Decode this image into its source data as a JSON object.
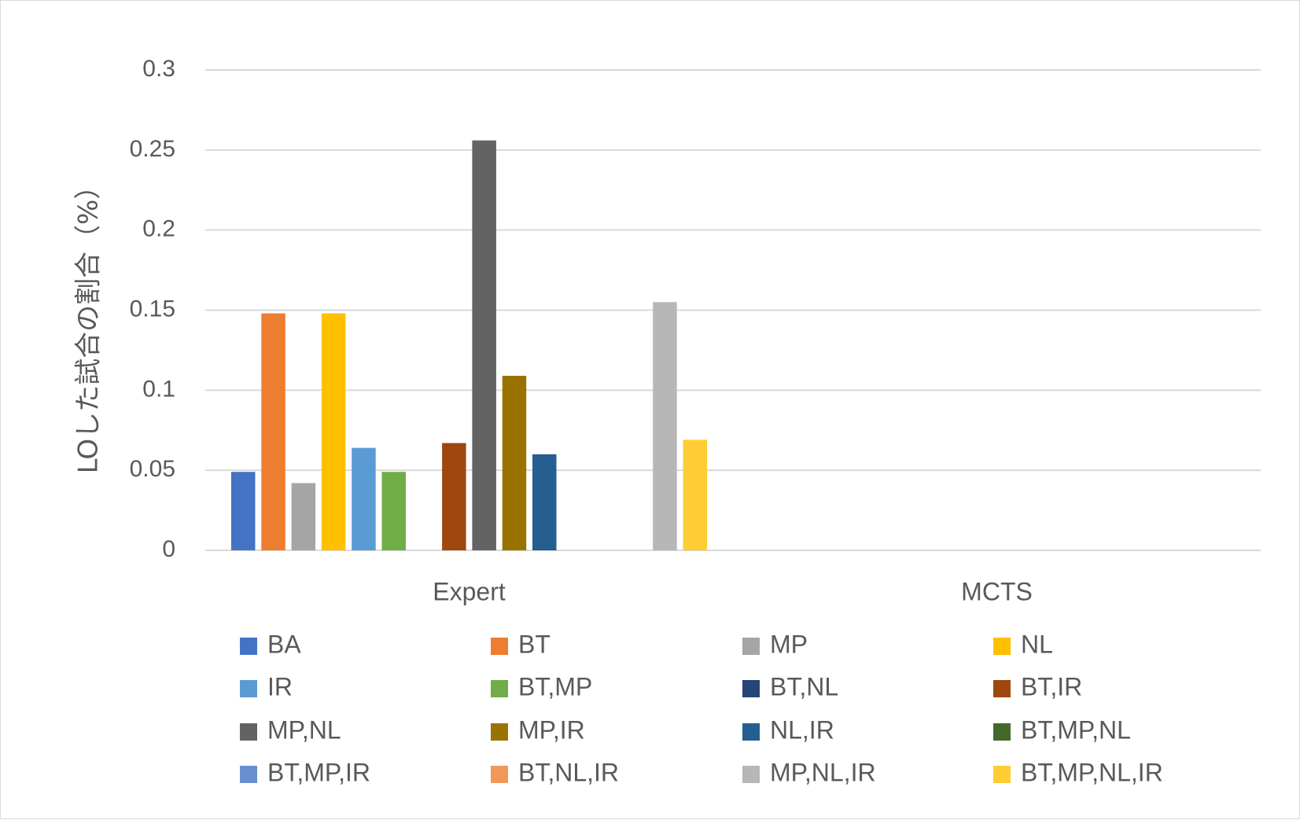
{
  "chart_data": {
    "type": "bar",
    "title": "",
    "xlabel": "",
    "ylabel": "LOした試合の割合（%）",
    "ylim": [
      0,
      0.3
    ],
    "yticks": [
      "0",
      "0.05",
      "0.1",
      "0.15",
      "0.2",
      "0.25",
      "0.3"
    ],
    "grid": true,
    "legend_position": "bottom",
    "categories": [
      "Expert",
      "MCTS"
    ],
    "series": [
      {
        "name": "BA",
        "color": "#4472C4",
        "values": [
          0.049,
          0
        ]
      },
      {
        "name": "BT",
        "color": "#ED7D31",
        "values": [
          0.148,
          0
        ]
      },
      {
        "name": "MP",
        "color": "#A5A5A5",
        "values": [
          0.042,
          0
        ]
      },
      {
        "name": "NL",
        "color": "#FFC000",
        "values": [
          0.148,
          0
        ]
      },
      {
        "name": "IR",
        "color": "#5B9BD5",
        "values": [
          0.064,
          0
        ]
      },
      {
        "name": "BT,MP",
        "color": "#70AD47",
        "values": [
          0.049,
          0
        ]
      },
      {
        "name": "BT,NL",
        "color": "#264478",
        "values": [
          0,
          0
        ]
      },
      {
        "name": "BT,IR",
        "color": "#9E480E",
        "values": [
          0.067,
          0
        ]
      },
      {
        "name": "MP,NL",
        "color": "#636363",
        "values": [
          0.256,
          0
        ]
      },
      {
        "name": "MP,IR",
        "color": "#997300",
        "values": [
          0.109,
          0
        ]
      },
      {
        "name": "NL,IR",
        "color": "#255E91",
        "values": [
          0.06,
          0
        ]
      },
      {
        "name": "BT,MP,NL",
        "color": "#43682B",
        "values": [
          0,
          0
        ]
      },
      {
        "name": "BT,MP,IR",
        "color": "#698ED0",
        "values": [
          0,
          0
        ]
      },
      {
        "name": "BT,NL,IR",
        "color": "#F1975A",
        "values": [
          0,
          0
        ]
      },
      {
        "name": "MP,NL,IR",
        "color": "#B7B7B7",
        "values": [
          0.155,
          0
        ]
      },
      {
        "name": "BT,MP,NL,IR",
        "color": "#FFCD33",
        "values": [
          0.069,
          0
        ]
      }
    ]
  }
}
